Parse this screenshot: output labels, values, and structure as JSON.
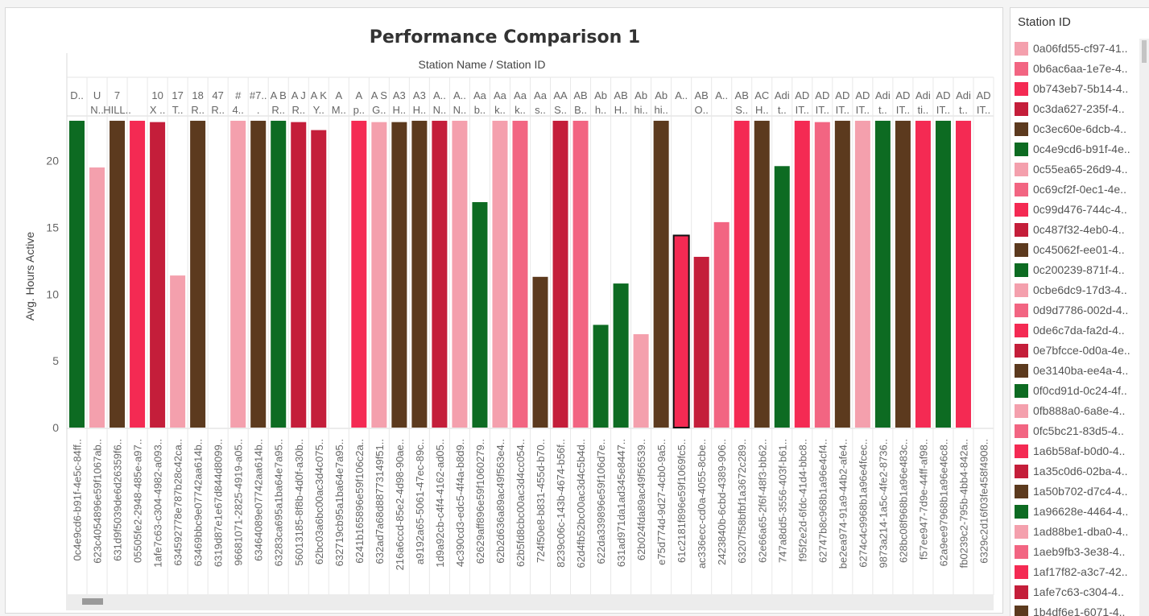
{
  "chart_data": {
    "type": "bar",
    "title": "Performance Comparison 1",
    "column_header": "Station Name  /  Station ID",
    "ylabel": "Avg. Hours Active",
    "ylim": [
      0,
      23.3
    ],
    "yticks": [
      0,
      5,
      10,
      15,
      20
    ],
    "grid": false,
    "legend_position": "right",
    "categories": [
      {
        "name": [
          "D.."
        ],
        "id": "0c4e9cd6-b91f-4e5c-84ff..",
        "value": 23.0,
        "color": "#0d6b22"
      },
      {
        "name": [
          "U",
          "N.."
        ],
        "id": "623c4054896e59f1067ab..",
        "value": 19.5,
        "color": "#f4a0ad"
      },
      {
        "name": [
          "7",
          "HILL.."
        ],
        "id": "631d9f5039de6d26359f6..",
        "value": 23.0,
        "color": "#5c3a1e"
      },
      {
        "name": [
          "",
          ""
        ],
        "id": "05505fe2-2948-485e-a97..",
        "value": 23.0,
        "color": "#f42a53"
      },
      {
        "name": [
          "10",
          "X .."
        ],
        "id": "1afe7c63-c304-4982-a093..",
        "value": 22.9,
        "color": "#c41e3a"
      },
      {
        "name": [
          "17",
          "T.."
        ],
        "id": "634592778e787b28c42ca..",
        "value": 11.4,
        "color": "#f4a0ad"
      },
      {
        "name": [
          "18",
          "R.."
        ],
        "id": "63469bbc9e07742aa614b..",
        "value": 23.0,
        "color": "#5c3a1e"
      },
      {
        "name": [
          "47",
          "R.."
        ],
        "id": "6319d87e1e67d844d8099..",
        "value": 0,
        "color": "#5c3a1e"
      },
      {
        "name": [
          "#",
          "4.."
        ],
        "id": "96681071-2825-4919-a05..",
        "value": 23.0,
        "color": "#f4a0ad"
      },
      {
        "name": [
          "#7..",
          "."
        ],
        "id": "63464089e07742aa614b..",
        "value": 23.0,
        "color": "#5c3a1e"
      },
      {
        "name": [
          "A B",
          "R.."
        ],
        "id": "63283ca695a1ba64e7a95..",
        "value": 23.0,
        "color": "#0d6b22"
      },
      {
        "name": [
          "A J",
          "R.."
        ],
        "id": "56013185-8f8b-4d0f-a30b..",
        "value": 22.9,
        "color": "#c41e3a"
      },
      {
        "name": [
          "A K",
          "Y.."
        ],
        "id": "62bc03a6bc00ac3d4c075..",
        "value": 22.3,
        "color": "#c41e3a"
      },
      {
        "name": [
          "A",
          "M.."
        ],
        "id": "632719cb95a1ba64e7a95..",
        "value": 0,
        "color": "#c41e3a"
      },
      {
        "name": [
          "A",
          "p.."
        ],
        "id": "6241b165896e59f106c2a..",
        "value": 23.0,
        "color": "#f42a53"
      },
      {
        "name": [
          "A S",
          "G.."
        ],
        "id": "632ad7a68d88773149f51..",
        "value": 22.9,
        "color": "#f4a0ad"
      },
      {
        "name": [
          "A3",
          "H.."
        ],
        "id": "216a6ccd-85e2-4d98-90ae..",
        "value": 22.9,
        "color": "#5c3a1e"
      },
      {
        "name": [
          "A3",
          "H.."
        ],
        "id": "a9192a65-5061-47ec-89c..",
        "value": 23.0,
        "color": "#5c3a1e"
      },
      {
        "name": [
          "A..",
          "N.."
        ],
        "id": "1d9a92cb-c4f4-4162-ad05..",
        "value": 23.0,
        "color": "#c41e3a"
      },
      {
        "name": [
          "A..",
          "N.."
        ],
        "id": "4c390cd3-edc5-4f4a-b8d9..",
        "value": 23.0,
        "color": "#f4a0ad"
      },
      {
        "name": [
          "Aa",
          "b.."
        ],
        "id": "62629aff896e59f1060279..",
        "value": 16.9,
        "color": "#0d6b22"
      },
      {
        "name": [
          "Aa",
          "k.."
        ],
        "id": "62b2d636a89ac49f563e4..",
        "value": 23.0,
        "color": "#f4a0ad"
      },
      {
        "name": [
          "Aa",
          "k.."
        ],
        "id": "62b5fd8cbc00ac3d4cc054..",
        "value": 23.0,
        "color": "#f26582"
      },
      {
        "name": [
          "Aa",
          "s.."
        ],
        "id": "724f50e8-b831-455d-b70..",
        "value": 11.3,
        "color": "#5c3a1e"
      },
      {
        "name": [
          "AA",
          "S.."
        ],
        "id": "8239c06c-143b-4674-b56f..",
        "value": 23.0,
        "color": "#c41e3a"
      },
      {
        "name": [
          "AB",
          "B.."
        ],
        "id": "62d4fb52bc00ac3d4c5b4d..",
        "value": 23.0,
        "color": "#f26582"
      },
      {
        "name": [
          "Ab",
          "h.."
        ],
        "id": "622da339896e59f106d7e..",
        "value": 7.7,
        "color": "#0d6b22"
      },
      {
        "name": [
          "AB",
          "H.."
        ],
        "id": "631ad971da1ad345e8447..",
        "value": 10.8,
        "color": "#0d6b22"
      },
      {
        "name": [
          "Ab",
          "hi.."
        ],
        "id": "62b024fda89ac49f56539..",
        "value": 7.0,
        "color": "#f4a0ad"
      },
      {
        "name": [
          "Ab",
          "hi.."
        ],
        "id": "e75d774d-9d27-4cb0-9a5..",
        "value": 23.0,
        "color": "#5c3a1e"
      },
      {
        "name": [
          "A..",
          ""
        ],
        "id": "61c2181f896e59f1069fc5..",
        "value": 14.4,
        "color": "#f42a53"
      },
      {
        "name": [
          "AB",
          "O.."
        ],
        "id": "ac336ecc-cd0a-4055-8cbe..",
        "value": 12.8,
        "color": "#c41e3a"
      },
      {
        "name": [
          "A..",
          ""
        ],
        "id": "2423840b-6cbd-4389-906..",
        "value": 15.4,
        "color": "#f26582"
      },
      {
        "name": [
          "AB",
          "S.."
        ],
        "id": "63207f58bfbf1a3672c289..",
        "value": 23.0,
        "color": "#f42a53"
      },
      {
        "name": [
          "AC",
          "H.."
        ],
        "id": "62e66a65-2f6f-48f3-bb62..",
        "value": 23.0,
        "color": "#5c3a1e"
      },
      {
        "name": [
          "Adi",
          "t.."
        ],
        "id": "747a8dd5-3556-403f-b61..",
        "value": 19.6,
        "color": "#0d6b22"
      },
      {
        "name": [
          "AD",
          "IT.."
        ],
        "id": "f95f2e2d-6fdc-41d4-bbc8..",
        "value": 23.0,
        "color": "#f42a53"
      },
      {
        "name": [
          "AD",
          "IT.."
        ],
        "id": "62747b8c968b1a96e4cf4..",
        "value": 22.9,
        "color": "#f26582"
      },
      {
        "name": [
          "AD",
          "IT.."
        ],
        "id": "be2ea974-91a9-44b2-afe4..",
        "value": 23.0,
        "color": "#5c3a1e"
      },
      {
        "name": [
          "AD",
          "IT.."
        ],
        "id": "6274c4c9968b1a96e4fcec..",
        "value": 23.0,
        "color": "#f4a0ad"
      },
      {
        "name": [
          "Adi",
          "t.."
        ],
        "id": "9873a214-1a5c-4fe2-8736..",
        "value": 23.0,
        "color": "#0d6b22"
      },
      {
        "name": [
          "AD",
          "IT.."
        ],
        "id": "628bc08f968b1a96e483c..",
        "value": 23.0,
        "color": "#5c3a1e"
      },
      {
        "name": [
          "Adi",
          "ti.."
        ],
        "id": "f57ee947-7d9e-44ff-af98..",
        "value": 23.0,
        "color": "#f42a53"
      },
      {
        "name": [
          "AD",
          "IT.."
        ],
        "id": "62a9ee97968b1a96e46c8..",
        "value": 23.0,
        "color": "#0d6b22"
      },
      {
        "name": [
          "Adi",
          "t.."
        ],
        "id": "fb0239c2-795b-4bb4-842a..",
        "value": 23.0,
        "color": "#f42a53"
      },
      {
        "name": [
          "AD",
          "IT.."
        ],
        "id": "6329c2d16f03fe458f4908..",
        "value": 0,
        "color": "#f42a53"
      }
    ],
    "highlighted_index": 30
  },
  "legend": {
    "title": "Station ID",
    "items": [
      {
        "label": "0a06fd55-cf97-41..",
        "color": "#f4a0ad"
      },
      {
        "label": "0b6ac6aa-1e7e-4..",
        "color": "#f26582"
      },
      {
        "label": "0b743eb7-5b14-4..",
        "color": "#f42a53"
      },
      {
        "label": "0c3da627-235f-4..",
        "color": "#c41e3a"
      },
      {
        "label": "0c3ec60e-6dcb-4..",
        "color": "#5c3a1e"
      },
      {
        "label": "0c4e9cd6-b91f-4e..",
        "color": "#0d6b22"
      },
      {
        "label": "0c55ea65-26d9-4..",
        "color": "#f4a0ad"
      },
      {
        "label": "0c69cf2f-0ec1-4e..",
        "color": "#f26582"
      },
      {
        "label": "0c99d476-744c-4..",
        "color": "#f42a53"
      },
      {
        "label": "0c487f32-4eb0-4..",
        "color": "#c41e3a"
      },
      {
        "label": "0c45062f-ee01-4..",
        "color": "#5c3a1e"
      },
      {
        "label": "0c200239-871f-4..",
        "color": "#0d6b22"
      },
      {
        "label": "0cbe6dc9-17d3-4..",
        "color": "#f4a0ad"
      },
      {
        "label": "0d9d7786-002d-4..",
        "color": "#f26582"
      },
      {
        "label": "0de6c7da-fa2d-4..",
        "color": "#f42a53"
      },
      {
        "label": "0e7bfcce-0d0a-4e..",
        "color": "#c41e3a"
      },
      {
        "label": "0e3140ba-ee4a-4..",
        "color": "#5c3a1e"
      },
      {
        "label": "0f0cd91d-0c24-4f..",
        "color": "#0d6b22"
      },
      {
        "label": "0fb888a0-6a8e-4..",
        "color": "#f4a0ad"
      },
      {
        "label": "0fc5bc21-83d5-4..",
        "color": "#f26582"
      },
      {
        "label": "1a6b58af-b0d0-4..",
        "color": "#f42a53"
      },
      {
        "label": "1a35c0d6-02ba-4..",
        "color": "#c41e3a"
      },
      {
        "label": "1a50b702-d7c4-4..",
        "color": "#5c3a1e"
      },
      {
        "label": "1a96628e-4464-4..",
        "color": "#0d6b22"
      },
      {
        "label": "1ad88be1-dba0-4..",
        "color": "#f4a0ad"
      },
      {
        "label": "1aeb9fb3-3e38-4..",
        "color": "#f26582"
      },
      {
        "label": "1af17f82-a3c7-42..",
        "color": "#f42a53"
      },
      {
        "label": "1afe7c63-c304-4..",
        "color": "#c41e3a"
      },
      {
        "label": "1b4df6e1-6071-4..",
        "color": "#5c3a1e"
      }
    ]
  }
}
